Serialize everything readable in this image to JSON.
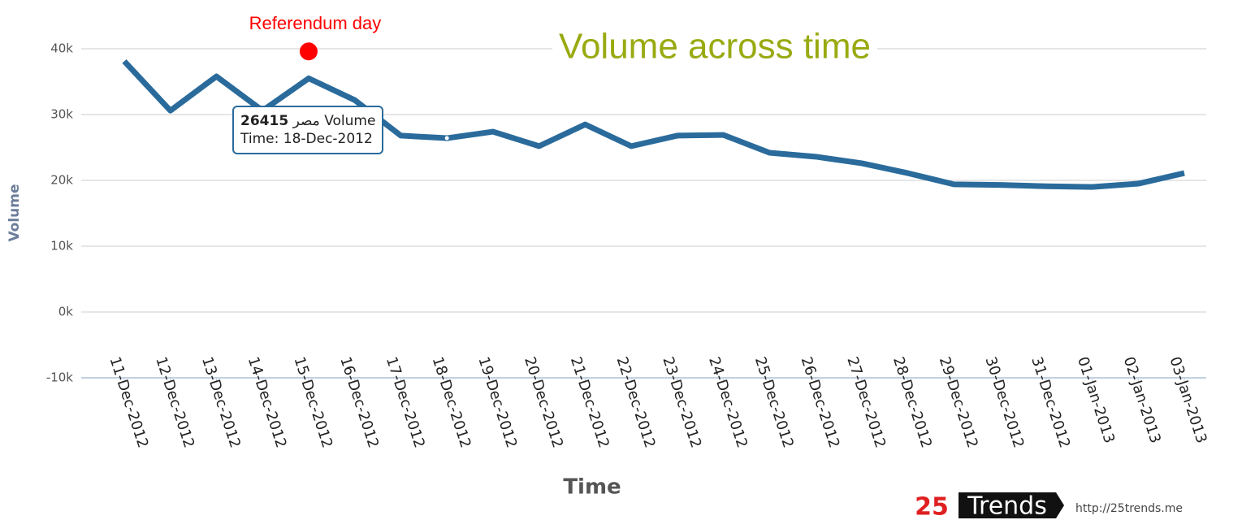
{
  "chart_data": {
    "type": "line",
    "title": "Volume across time",
    "x_label": "Time",
    "y_label": "Volume",
    "categories": [
      "11-Dec-2012",
      "12-Dec-2012",
      "13-Dec-2012",
      "14-Dec-2012",
      "15-Dec-2012",
      "16-Dec-2012",
      "17-Dec-2012",
      "18-Dec-2012",
      "19-Dec-2012",
      "20-Dec-2012",
      "21-Dec-2012",
      "22-Dec-2012",
      "23-Dec-2012",
      "24-Dec-2012",
      "25-Dec-2012",
      "26-Dec-2012",
      "27-Dec-2012",
      "28-Dec-2012",
      "29-Dec-2012",
      "30-Dec-2012",
      "31-Dec-2012",
      "01-Jan-2013",
      "02-Jan-2013",
      "03-Jan-2013"
    ],
    "series": [
      {
        "name": "مصر Volume",
        "color": "#2a6b9c",
        "values": [
          38100,
          30600,
          35800,
          30600,
          35500,
          32200,
          26800,
          26415,
          27400,
          25200,
          28500,
          25200,
          26800,
          26900,
          24200,
          23600,
          22600,
          21100,
          19400,
          19300,
          19100,
          19000,
          19500,
          21100
        ]
      }
    ],
    "ylim": [
      -10000,
      40000
    ],
    "yticks": [
      {
        "value": -10000,
        "label": "-10k"
      },
      {
        "value": 0,
        "label": "0k"
      },
      {
        "value": 10000,
        "label": "10k"
      },
      {
        "value": 20000,
        "label": "20k"
      },
      {
        "value": 30000,
        "label": "30k"
      },
      {
        "value": 40000,
        "label": "40k"
      }
    ],
    "grid": true,
    "annotation": {
      "text": "Referendum day",
      "x": "15-Dec-2012",
      "y": 39600,
      "color": "#ff0000"
    },
    "tooltip": {
      "time_prefix": "Time:",
      "index": 7
    }
  },
  "branding": {
    "logo_number": "25",
    "logo_word": "Trends",
    "url": "http://25trends.me"
  }
}
